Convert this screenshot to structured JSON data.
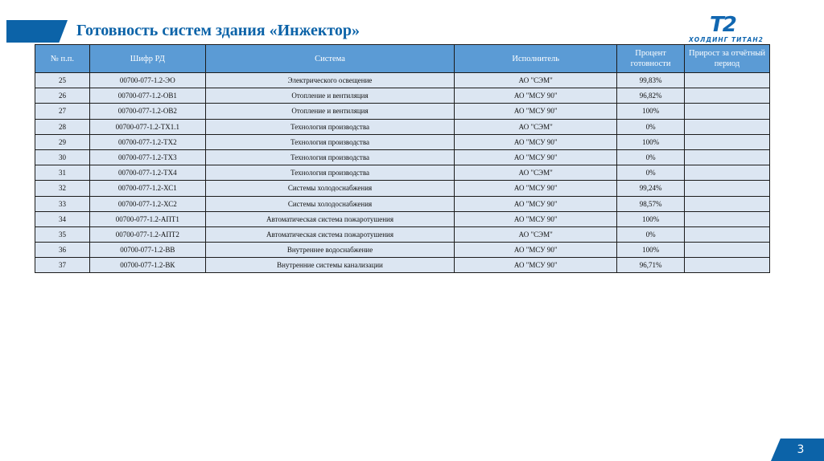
{
  "slide": {
    "title": "Готовность систем здания «Инжектор»",
    "page_number": "3",
    "accent_color": "#0c63a8"
  },
  "logo": {
    "main": "T2",
    "sub": "ХОЛДИНГ ТИТАН2"
  },
  "table": {
    "headers": [
      "№ п.п.",
      "Шифр РД",
      "Система",
      "Исполнитель",
      "Процент готовности",
      "Прирост за отчётный период"
    ],
    "rows": [
      [
        "25",
        "00700-077-1.2-ЭО",
        "Электрического освещение",
        "АО \"СЭМ\"",
        "99,83%",
        ""
      ],
      [
        "26",
        "00700-077-1.2-ОВ1",
        "Отопление и вентиляция",
        "АО \"МСУ 90\"",
        "96,82%",
        ""
      ],
      [
        "27",
        "00700-077-1.2-ОВ2",
        "Отопление и вентиляция",
        "АО \"МСУ 90\"",
        "100%",
        ""
      ],
      [
        "28",
        "00700-077-1.2-ТХ1.1",
        "Технология производства",
        "АО \"СЭМ\"",
        "0%",
        ""
      ],
      [
        "29",
        "00700-077-1.2-ТХ2",
        "Технология производства",
        "АО \"МСУ 90\"",
        "100%",
        ""
      ],
      [
        "30",
        "00700-077-1.2-ТХ3",
        "Технология производства",
        "АО \"МСУ 90\"",
        "0%",
        ""
      ],
      [
        "31",
        "00700-077-1.2-ТХ4",
        "Технология производства",
        "АО \"СЭМ\"",
        "0%",
        ""
      ],
      [
        "32",
        "00700-077-1.2-ХС1",
        "Системы холодоснабжения",
        "АО \"МСУ 90\"",
        "99,24%",
        ""
      ],
      [
        "33",
        "00700-077-1.2-ХС2",
        "Системы холодоснабжения",
        "АО \"МСУ 90\"",
        "98,57%",
        ""
      ],
      [
        "34",
        "00700-077-1.2-АПТ1",
        "Автоматическая система пожаротушения",
        "АО \"МСУ 90\"",
        "100%",
        ""
      ],
      [
        "35",
        "00700-077-1.2-АПТ2",
        "Автоматическая система пожаротушения",
        "АО \"СЭМ\"",
        "0%",
        ""
      ],
      [
        "36",
        "00700-077-1.2-ВВ",
        "Внутреннее водоснабжение",
        "АО \"МСУ 90\"",
        "100%",
        ""
      ],
      [
        "37",
        "00700-077-1.2-ВК",
        "Внутренние системы канализации",
        "АО \"МСУ 90\"",
        "96,71%",
        ""
      ]
    ]
  }
}
